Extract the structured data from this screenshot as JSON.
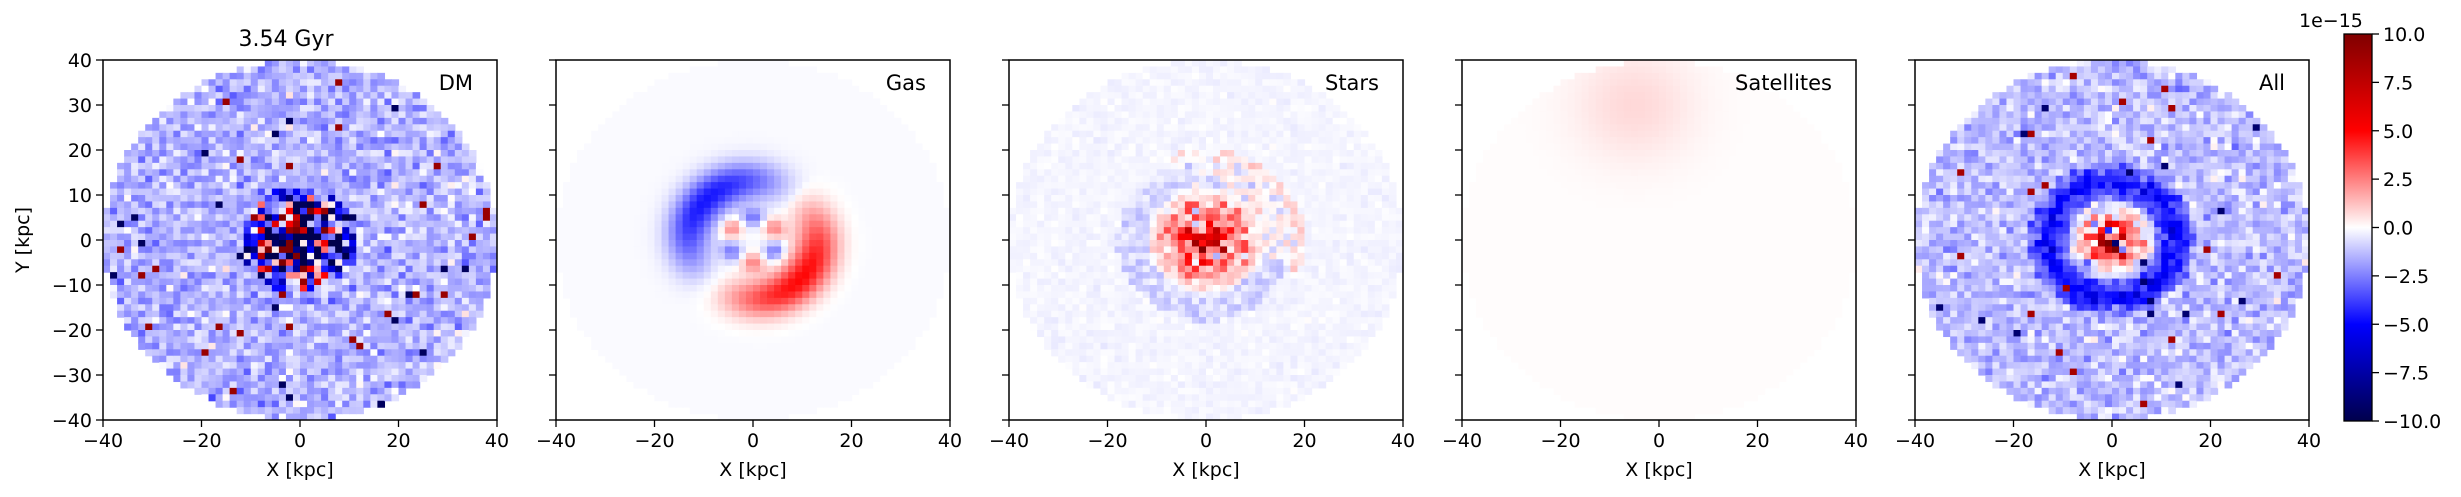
{
  "figure": {
    "title": "3.54 Gyr"
  },
  "chart_data": [
    {
      "type": "heatmap",
      "panel": "DM",
      "label": "DM",
      "xlabel": "X [kpc]",
      "ylabel": "Y [kpc]",
      "xlim": [
        -40,
        40
      ],
      "ylim": [
        -40,
        40
      ],
      "xticks": [
        "−40",
        "−20",
        "0",
        "20",
        "40"
      ],
      "yticks": [
        "40",
        "30",
        "20",
        "10",
        "0",
        "−10",
        "−20",
        "−30",
        "−40"
      ],
      "disk_radius_kpc": 40,
      "pattern": "noisy blue-dominated field with a dark central core of mixed red and blue pixels and scattered red outliers",
      "color_scale": "seismic"
    },
    {
      "type": "heatmap",
      "panel": "Gas",
      "label": "Gas",
      "xlabel": "X [kpc]",
      "ylabel": "",
      "xlim": [
        -40,
        40
      ],
      "ylim": [
        -40,
        40
      ],
      "xticks": [
        "−40",
        "−20",
        "0",
        "20",
        "40"
      ],
      "disk_radius_kpc": 40,
      "pattern": "smooth spiral structure: blue arc on the left/upper side, red arc on the lower right, ring near the center",
      "color_scale": "seismic"
    },
    {
      "type": "heatmap",
      "panel": "Stars",
      "label": "Stars",
      "xlabel": "X [kpc]",
      "ylabel": "",
      "xlim": [
        -40,
        40
      ],
      "ylim": [
        -40,
        40
      ],
      "xticks": [
        "−40",
        "−20",
        "0",
        "20",
        "40"
      ],
      "disk_radius_kpc": 40,
      "pattern": "compact red core of about 10 kpc radius with blue noise surrounding it",
      "color_scale": "seismic"
    },
    {
      "type": "heatmap",
      "panel": "Satellites",
      "label": "Satellites",
      "xlabel": "X [kpc]",
      "ylabel": "",
      "xlim": [
        -40,
        40
      ],
      "ylim": [
        -40,
        40
      ],
      "xticks": [
        "−40",
        "−20",
        "0",
        "20",
        "40"
      ],
      "disk_radius_kpc": 40,
      "pattern": "nearly zero everywhere, faint pinkish patch at the top near x=-5, y=30",
      "color_scale": "seismic"
    },
    {
      "type": "heatmap",
      "panel": "All",
      "label": "All",
      "xlabel": "X [kpc]",
      "ylabel": "",
      "xlim": [
        -40,
        40
      ],
      "ylim": [
        -40,
        40
      ],
      "xticks": [
        "−40",
        "−20",
        "0",
        "20",
        "40"
      ],
      "disk_radius_kpc": 40,
      "pattern": "sum of components: red core surrounded by blue ring and noisy blue/red field",
      "color_scale": "seismic"
    }
  ],
  "colorbar": {
    "offset_label": "1e−15",
    "vmin": -10.0,
    "vmax": 10.0,
    "ticks": [
      "10.0",
      "7.5",
      "5.0",
      "2.5",
      "0.0",
      "−2.5",
      "−5.0",
      "−7.5",
      "−10.0"
    ],
    "colors": [
      "#00004c",
      "#0000ff",
      "#ffffff",
      "#ff0000",
      "#800000"
    ]
  }
}
